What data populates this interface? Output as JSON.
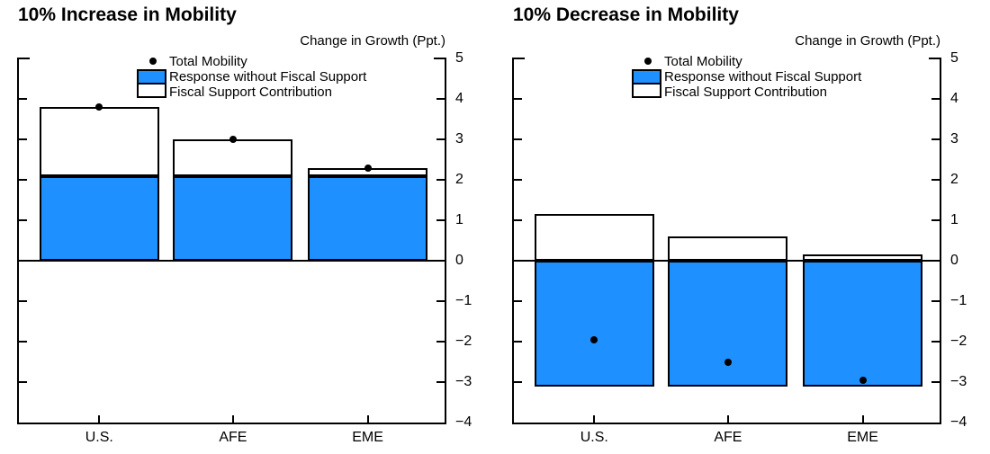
{
  "accent_color": "#1E90FF",
  "chart_data": [
    {
      "type": "bar",
      "stacked": true,
      "title": "10% Increase in Mobility",
      "axis_label": "Change in Growth (Ppt.)",
      "categories": [
        "U.S.",
        "AFE",
        "EME"
      ],
      "series": [
        {
          "name": "Response without Fiscal Support",
          "kind": "bar",
          "color": "#1E90FF",
          "values": [
            2.1,
            2.1,
            2.1
          ]
        },
        {
          "name": "Fiscal Support Contribution",
          "kind": "bar",
          "color": "#FFFFFF",
          "values": [
            1.7,
            0.9,
            0.2
          ]
        },
        {
          "name": "Total Mobility",
          "kind": "point",
          "color": "#000000",
          "values": [
            3.8,
            3.0,
            2.3
          ]
        }
      ],
      "ylim": [
        -4,
        5
      ],
      "yticks": [
        5,
        4,
        3,
        2,
        1,
        0,
        -1,
        -2,
        -3,
        -4
      ],
      "ytick_labels": [
        "5",
        "4",
        "3",
        "2",
        "1",
        "0",
        "−1",
        "−2",
        "−3",
        "−4"
      ],
      "legend_position": "top-center",
      "grid": false
    },
    {
      "type": "bar",
      "stacked": true,
      "title": "10% Decrease in Mobility",
      "axis_label": "Change in Growth (Ppt.)",
      "categories": [
        "U.S.",
        "AFE",
        "EME"
      ],
      "series": [
        {
          "name": "Response without Fiscal Support",
          "kind": "bar",
          "color": "#1E90FF",
          "values": [
            -3.1,
            -3.1,
            -3.1
          ]
        },
        {
          "name": "Fiscal Support Contribution",
          "kind": "bar",
          "color": "#FFFFFF",
          "values": [
            1.15,
            0.6,
            0.15
          ]
        },
        {
          "name": "Total Mobility",
          "kind": "point",
          "color": "#000000",
          "values": [
            -1.95,
            -2.5,
            -2.95
          ]
        }
      ],
      "ylim": [
        -4,
        5
      ],
      "yticks": [
        5,
        4,
        3,
        2,
        1,
        0,
        -1,
        -2,
        -3,
        -4
      ],
      "ytick_labels": [
        "5",
        "4",
        "3",
        "2",
        "1",
        "0",
        "−1",
        "−2",
        "−3",
        "−4"
      ],
      "legend_position": "top-center",
      "grid": false
    }
  ]
}
